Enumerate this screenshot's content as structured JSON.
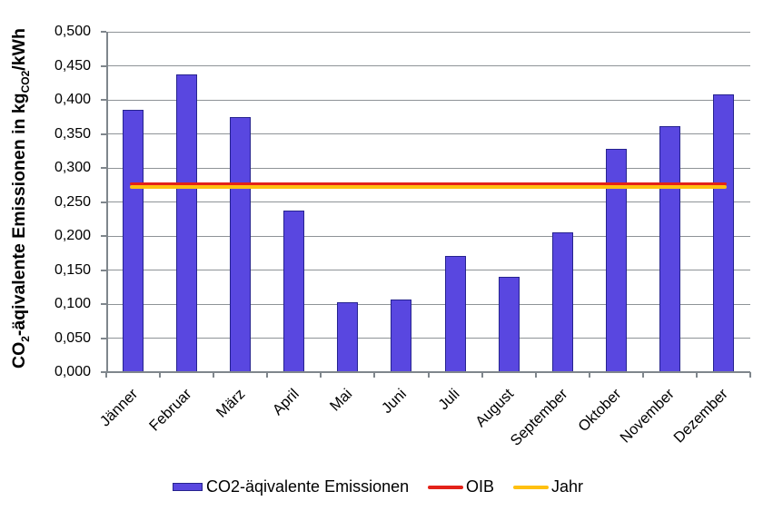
{
  "chart_data": {
    "type": "bar",
    "title": "",
    "ylabel_parts": {
      "p1": "CO",
      "s1": "2",
      "p2": "-äqivalente Emissionen in kg",
      "s2": "CO2",
      "p3": "/kWh"
    },
    "categories": [
      "Jänner",
      "Februar",
      "März",
      "April",
      "Mai",
      "Juni",
      "Juli",
      "August",
      "September",
      "Oktober",
      "November",
      "Dezember"
    ],
    "values": [
      0.385,
      0.437,
      0.375,
      0.238,
      0.103,
      0.107,
      0.171,
      0.14,
      0.206,
      0.328,
      0.362,
      0.408
    ],
    "series_name": "CO2-äqivalente Emissionen",
    "lines": [
      {
        "name": "OIB",
        "value": 0.277,
        "color": "#e32219",
        "thickness": 3
      },
      {
        "name": "Jahr",
        "value": 0.2725,
        "color": "#ffc010",
        "thickness": 4
      }
    ],
    "ylim": [
      0,
      0.5
    ],
    "ystep": 0.05,
    "decimal_separator": ",",
    "bar_color": "#5947e0",
    "bar_border_color": "#26238f",
    "grid": true,
    "legend_position": "bottom"
  },
  "legend": {
    "items": [
      {
        "label": "CO2-äqivalente Emissionen"
      },
      {
        "label": "OIB"
      },
      {
        "label": "Jahr"
      }
    ]
  }
}
